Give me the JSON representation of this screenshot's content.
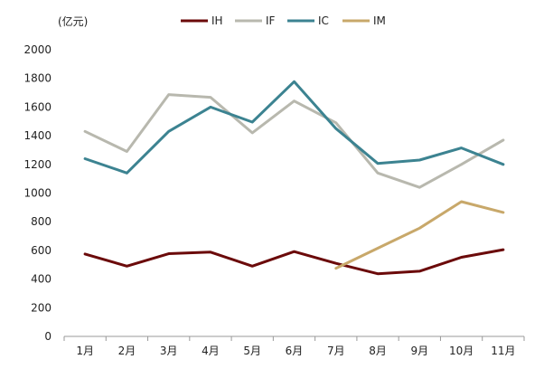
{
  "chart_data": {
    "type": "line",
    "title": "",
    "xlabel": "",
    "ylabel": "(亿元)",
    "ylim": [
      0,
      2000
    ],
    "yticks": [
      0,
      200,
      400,
      600,
      800,
      1000,
      1200,
      1400,
      1600,
      1800,
      2000
    ],
    "grid": false,
    "legend_position": "top-center",
    "categories": [
      "1月",
      "2月",
      "3月",
      "4月",
      "5月",
      "6月",
      "7月",
      "8月",
      "9月",
      "10月",
      "11月"
    ],
    "series": [
      {
        "name": "IH",
        "color": "#6b0a0a",
        "values": [
          575,
          490,
          577,
          588,
          490,
          592,
          510,
          437,
          455,
          552,
          605
        ]
      },
      {
        "name": "IF",
        "color": "#b8b8ae",
        "values": [
          1430,
          1290,
          1687,
          1668,
          1420,
          1642,
          1490,
          1140,
          1040,
          1200,
          1370
        ]
      },
      {
        "name": "IC",
        "color": "#3c8391",
        "values": [
          1240,
          1140,
          1430,
          1600,
          1495,
          1777,
          1450,
          1207,
          1230,
          1315,
          1200
        ]
      },
      {
        "name": "IM",
        "color": "#c8a86a",
        "values": [
          null,
          null,
          null,
          null,
          null,
          null,
          475,
          615,
          755,
          940,
          865
        ]
      }
    ]
  }
}
